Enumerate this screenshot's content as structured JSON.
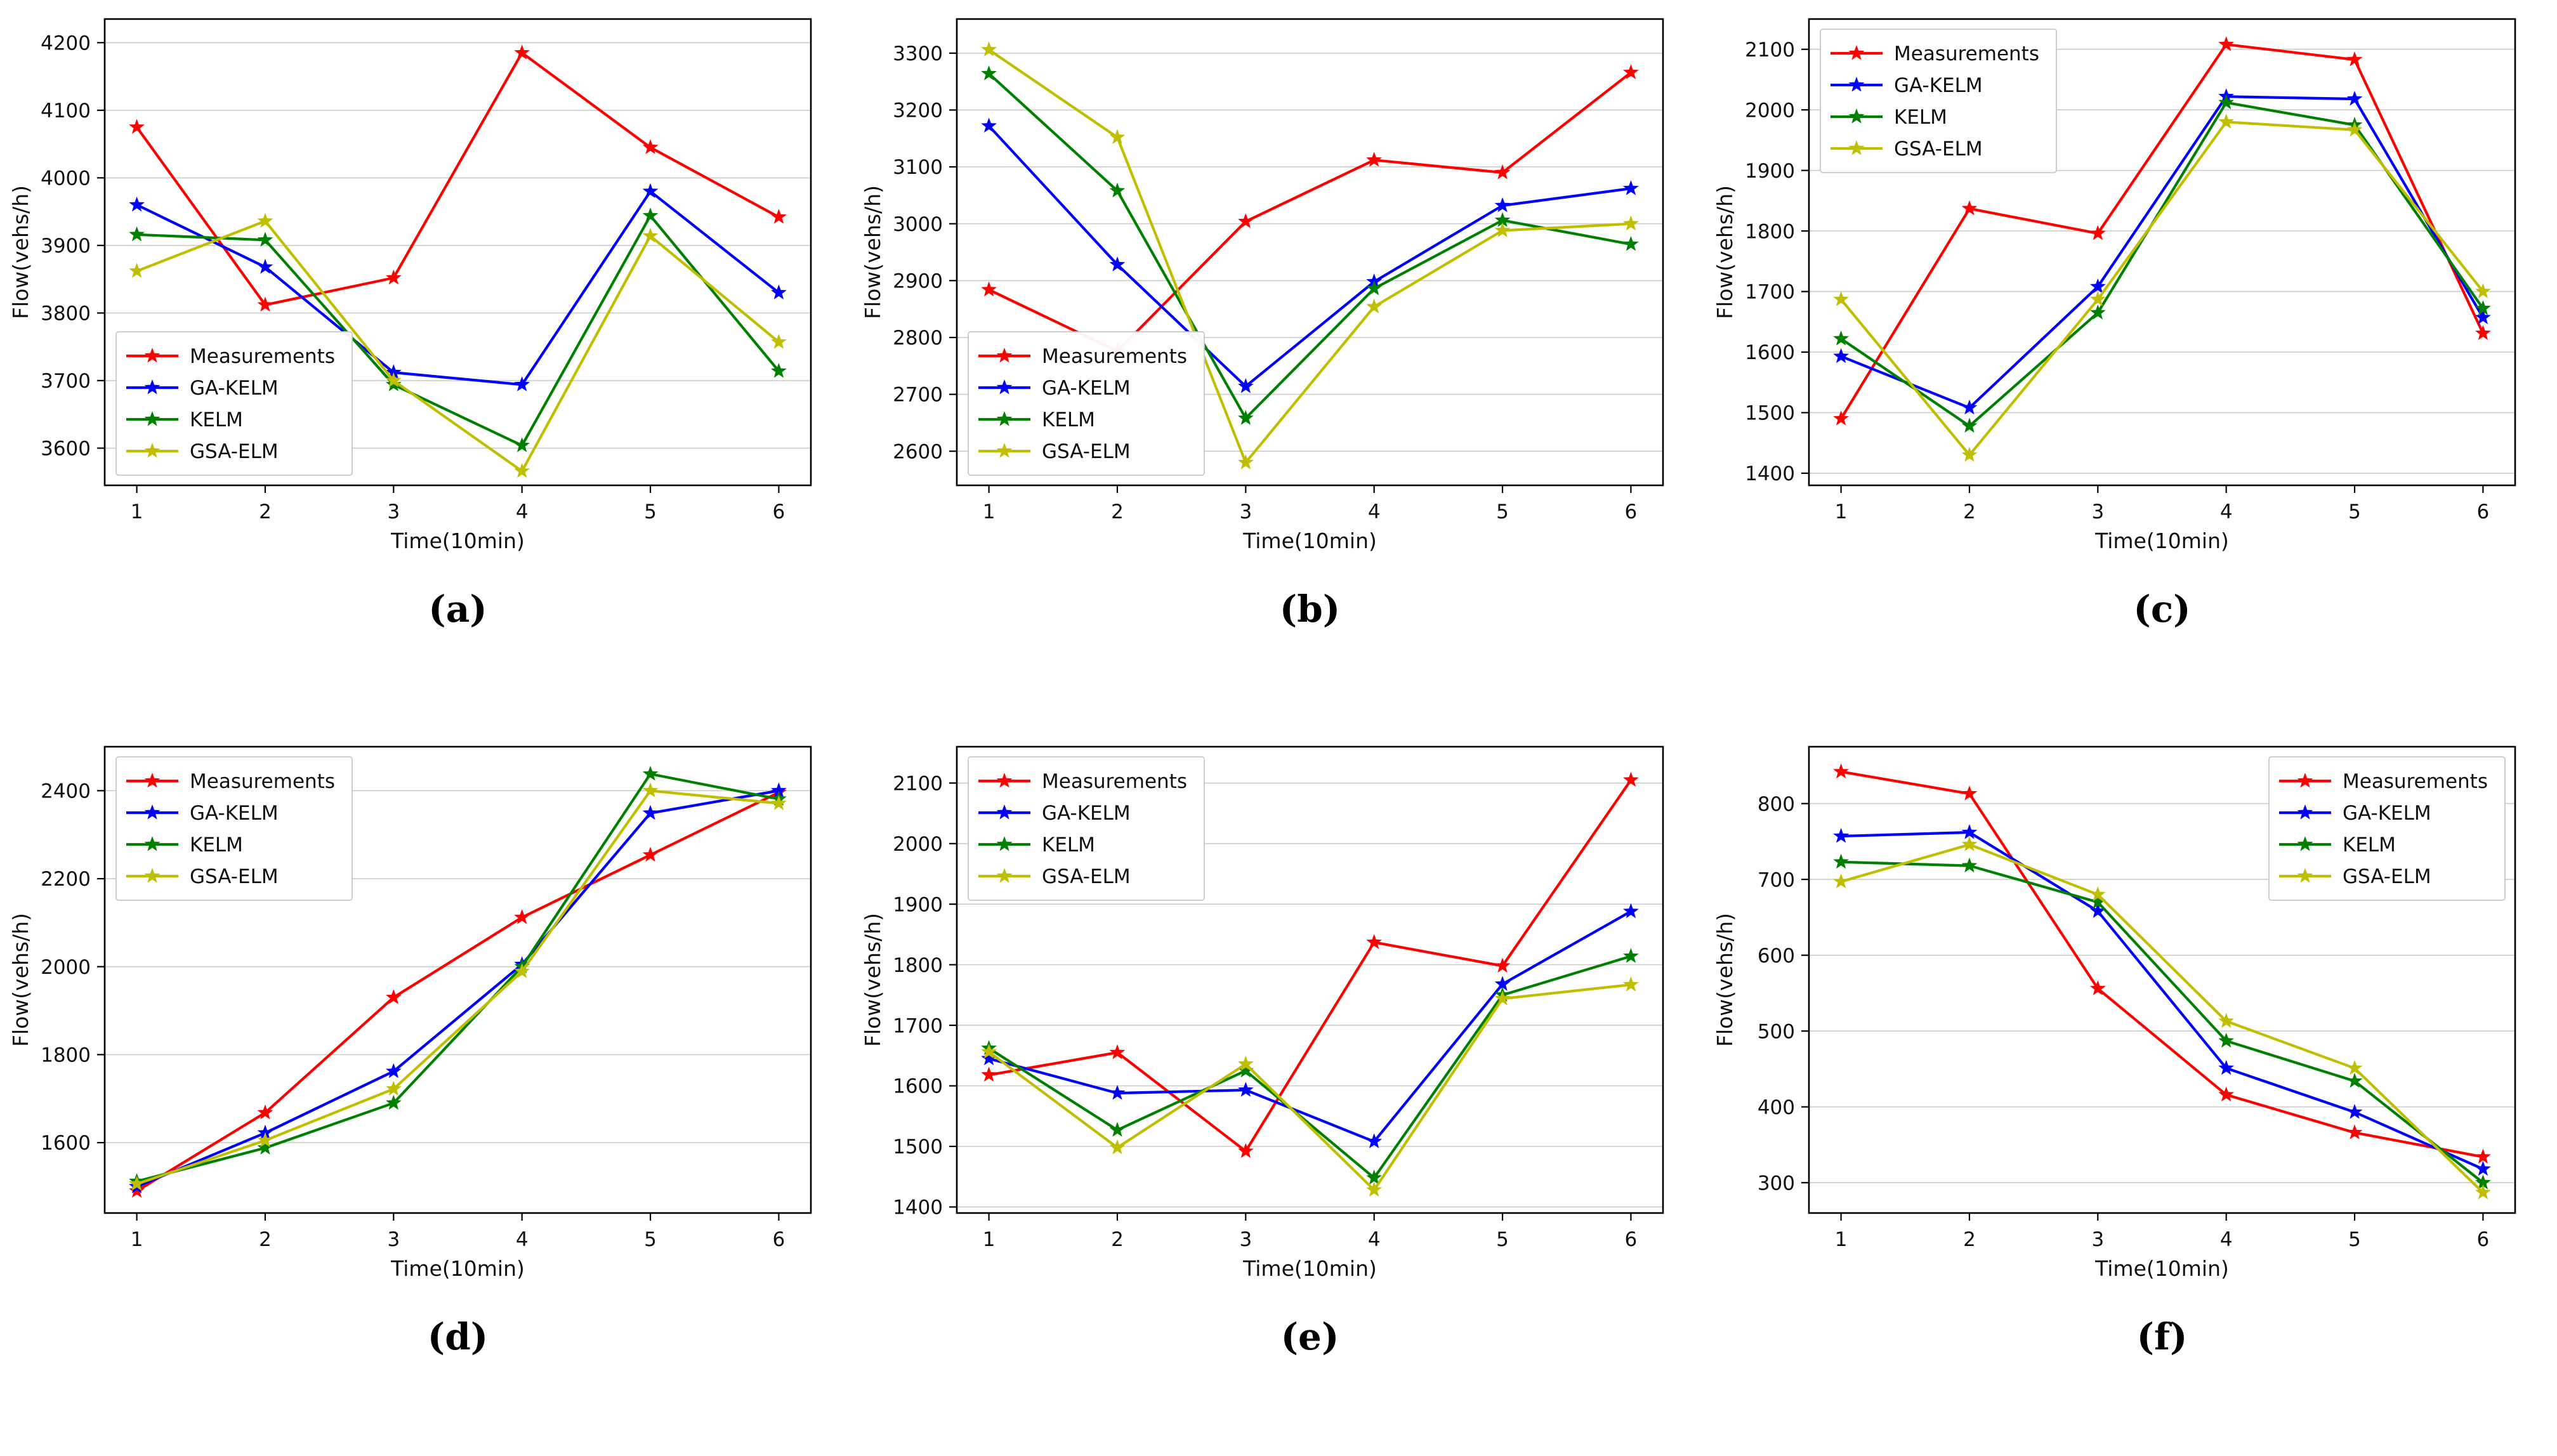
{
  "figure": {
    "xlabel": "Time(10min)",
    "ylabel": "Flow(vehs/h)",
    "xlim": [
      0.75,
      6.25
    ],
    "x_ticks": [
      1,
      2,
      3,
      4,
      5,
      6
    ],
    "legend_labels": [
      "Measurements",
      "GA-KELM",
      "KELM",
      "GSA-ELM"
    ],
    "series_colors": [
      "#ff0000",
      "#0000ff",
      "#008000",
      "#bfbf00"
    ],
    "grid": "horizontal",
    "marker": "star"
  },
  "chart_data": [
    {
      "id": "a",
      "type": "line",
      "caption": "(a)",
      "legend_position": "lower-left",
      "ylim": [
        3545,
        4235
      ],
      "yticks": [
        3600,
        3700,
        3800,
        3900,
        4000,
        4100,
        4200
      ],
      "x": [
        1,
        2,
        3,
        4,
        5,
        6
      ],
      "series": [
        {
          "name": "Measurements",
          "color": "#ff0000",
          "values": [
            4075,
            3812,
            3852,
            4185,
            4045,
            3942
          ]
        },
        {
          "name": "GA-KELM",
          "color": "#0000ff",
          "values": [
            3960,
            3868,
            3712,
            3694,
            3980,
            3830
          ]
        },
        {
          "name": "KELM",
          "color": "#008000",
          "values": [
            3916,
            3908,
            3694,
            3604,
            3944,
            3714
          ]
        },
        {
          "name": "GSA-ELM",
          "color": "#bfbf00",
          "values": [
            3862,
            3936,
            3700,
            3566,
            3914,
            3757
          ]
        }
      ]
    },
    {
      "id": "b",
      "type": "line",
      "caption": "(b)",
      "legend_position": "lower-left",
      "ylim": [
        2540,
        3360
      ],
      "yticks": [
        2600,
        2700,
        2800,
        2900,
        3000,
        3100,
        3200,
        3300
      ],
      "x": [
        1,
        2,
        3,
        4,
        5,
        6
      ],
      "series": [
        {
          "name": "Measurements",
          "color": "#ff0000",
          "values": [
            2884,
            2776,
            3004,
            3112,
            3090,
            3266
          ]
        },
        {
          "name": "GA-KELM",
          "color": "#0000ff",
          "values": [
            3172,
            2928,
            2714,
            2898,
            3032,
            3062
          ]
        },
        {
          "name": "KELM",
          "color": "#008000",
          "values": [
            3264,
            3058,
            2658,
            2886,
            3006,
            2964
          ]
        },
        {
          "name": "GSA-ELM",
          "color": "#bfbf00",
          "values": [
            3306,
            3152,
            2580,
            2854,
            2988,
            3000
          ]
        }
      ]
    },
    {
      "id": "c",
      "type": "line",
      "caption": "(c)",
      "legend_position": "upper-left",
      "ylim": [
        1380,
        2150
      ],
      "yticks": [
        1400,
        1500,
        1600,
        1700,
        1800,
        1900,
        2000,
        2100
      ],
      "x": [
        1,
        2,
        3,
        4,
        5,
        6
      ],
      "series": [
        {
          "name": "Measurements",
          "color": "#ff0000",
          "values": [
            1490,
            1837,
            1796,
            2108,
            2083,
            1631
          ]
        },
        {
          "name": "GA-KELM",
          "color": "#0000ff",
          "values": [
            1593,
            1508,
            1708,
            2022,
            2018,
            1657
          ]
        },
        {
          "name": "KELM",
          "color": "#008000",
          "values": [
            1622,
            1478,
            1665,
            2012,
            1975,
            1672
          ]
        },
        {
          "name": "GSA-ELM",
          "color": "#bfbf00",
          "values": [
            1687,
            1430,
            1687,
            1980,
            1967,
            1700
          ]
        }
      ]
    },
    {
      "id": "d",
      "type": "line",
      "caption": "(d)",
      "legend_position": "upper-left",
      "ylim": [
        1440,
        2500
      ],
      "yticks": [
        1600,
        1800,
        2000,
        2200,
        2400
      ],
      "x": [
        1,
        2,
        3,
        4,
        5,
        6
      ],
      "series": [
        {
          "name": "Measurements",
          "color": "#ff0000",
          "values": [
            1490,
            1668,
            1930,
            2112,
            2254,
            2396
          ]
        },
        {
          "name": "GA-KELM",
          "color": "#0000ff",
          "values": [
            1500,
            1622,
            1762,
            2005,
            2349,
            2400
          ]
        },
        {
          "name": "KELM",
          "color": "#008000",
          "values": [
            1512,
            1588,
            1690,
            2000,
            2438,
            2381
          ]
        },
        {
          "name": "GSA-ELM",
          "color": "#bfbf00",
          "values": [
            1506,
            1605,
            1722,
            1989,
            2400,
            2371
          ]
        }
      ]
    },
    {
      "id": "e",
      "type": "line",
      "caption": "(e)",
      "legend_position": "upper-left",
      "ylim": [
        1390,
        2160
      ],
      "yticks": [
        1400,
        1500,
        1600,
        1700,
        1800,
        1900,
        2000,
        2100
      ],
      "x": [
        1,
        2,
        3,
        4,
        5,
        6
      ],
      "series": [
        {
          "name": "Measurements",
          "color": "#ff0000",
          "values": [
            1618,
            1655,
            1492,
            1837,
            1798,
            2105
          ]
        },
        {
          "name": "GA-KELM",
          "color": "#0000ff",
          "values": [
            1645,
            1588,
            1593,
            1508,
            1768,
            1888
          ]
        },
        {
          "name": "KELM",
          "color": "#008000",
          "values": [
            1662,
            1527,
            1625,
            1448,
            1750,
            1814
          ]
        },
        {
          "name": "GSA-ELM",
          "color": "#bfbf00",
          "values": [
            1656,
            1498,
            1636,
            1428,
            1744,
            1767
          ]
        }
      ]
    },
    {
      "id": "f",
      "type": "line",
      "caption": "(f)",
      "legend_position": "upper-right",
      "ylim": [
        260,
        875
      ],
      "yticks": [
        300,
        400,
        500,
        600,
        700,
        800
      ],
      "x": [
        1,
        2,
        3,
        4,
        5,
        6
      ],
      "series": [
        {
          "name": "Measurements",
          "color": "#ff0000",
          "values": [
            842,
            813,
            556,
            416,
            366,
            334
          ]
        },
        {
          "name": "GA-KELM",
          "color": "#0000ff",
          "values": [
            757,
            762,
            658,
            451,
            393,
            318
          ]
        },
        {
          "name": "KELM",
          "color": "#008000",
          "values": [
            723,
            718,
            670,
            487,
            434,
            300
          ]
        },
        {
          "name": "GSA-ELM",
          "color": "#bfbf00",
          "values": [
            697,
            746,
            680,
            513,
            451,
            287
          ]
        }
      ]
    }
  ]
}
